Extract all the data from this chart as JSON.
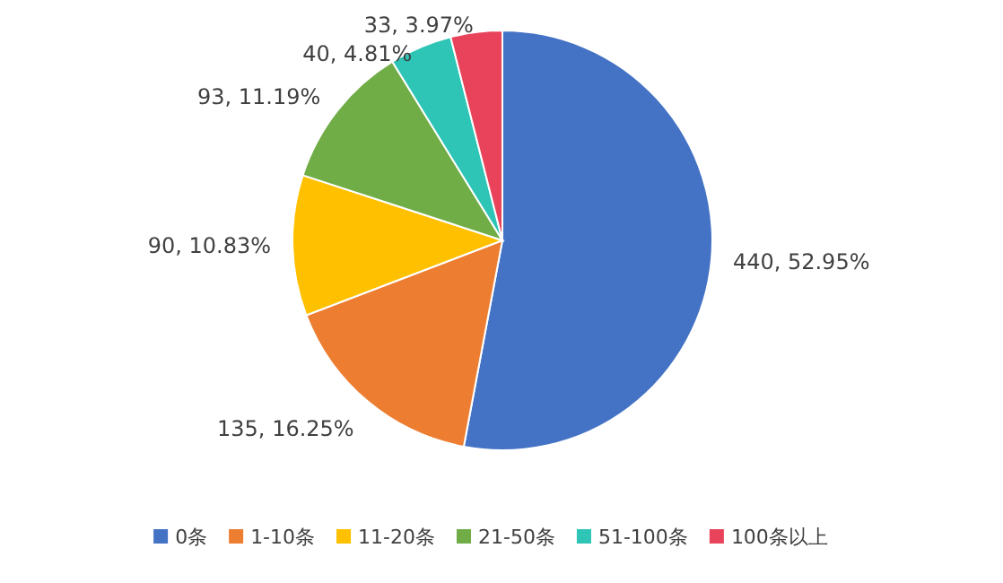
{
  "chart_data": {
    "type": "pie",
    "categories": [
      "0条",
      "1-10条",
      "11-20条",
      "21-50条",
      "51-100条",
      "100条以上"
    ],
    "values": [
      440,
      135,
      90,
      93,
      40,
      33
    ],
    "colors": [
      "#4472c4",
      "#ed7d31",
      "#ffc000",
      "#70ad47",
      "#2ec4b6",
      "#e8435a"
    ],
    "value_labels": [
      "440, 52.95%",
      "135, 16.25%",
      "90, 10.83%",
      "93, 11.19%",
      "40, 4.81%",
      "33, 3.97%"
    ],
    "legend": "bottom"
  }
}
